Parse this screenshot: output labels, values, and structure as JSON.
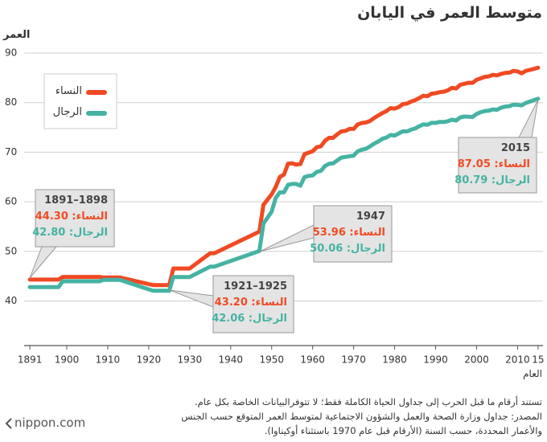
{
  "chart_data": {
    "type": "line",
    "title": "متوسط العمر في اليابان",
    "y_label": "العمر",
    "x_label": "العام",
    "x": [
      1891,
      1898,
      1899,
      1908,
      1909,
      1913,
      1921,
      1925,
      1926,
      1930,
      1935,
      1936,
      1947,
      1948,
      1950,
      1951,
      1952,
      1953,
      1954,
      1955,
      1956,
      1957,
      1958,
      1959,
      1960,
      1961,
      1962,
      1963,
      1964,
      1965,
      1966,
      1967,
      1968,
      1969,
      1970,
      1971,
      1972,
      1973,
      1974,
      1975,
      1976,
      1977,
      1978,
      1979,
      1980,
      1981,
      1982,
      1983,
      1984,
      1985,
      1986,
      1987,
      1988,
      1989,
      1990,
      1991,
      1992,
      1993,
      1994,
      1995,
      1996,
      1997,
      1998,
      1999,
      2000,
      2001,
      2002,
      2003,
      2004,
      2005,
      2006,
      2007,
      2008,
      2009,
      2010,
      2011,
      2012,
      2013,
      2014,
      2015
    ],
    "series": [
      {
        "name": "النساء",
        "color": "#f04a23",
        "values": [
          44.3,
          44.3,
          44.85,
          44.85,
          44.73,
          44.73,
          43.2,
          43.2,
          46.54,
          46.54,
          49.63,
          49.63,
          53.96,
          59.4,
          61.5,
          63.0,
          65.0,
          65.5,
          67.7,
          67.75,
          67.5,
          67.6,
          69.6,
          69.9,
          70.2,
          71.0,
          71.2,
          72.3,
          72.9,
          72.9,
          73.6,
          74.2,
          74.3,
          74.7,
          74.7,
          75.6,
          75.9,
          76.0,
          76.3,
          76.9,
          77.4,
          77.9,
          78.3,
          78.9,
          78.8,
          79.1,
          79.7,
          79.8,
          80.2,
          80.5,
          80.9,
          81.4,
          81.3,
          81.8,
          81.9,
          82.1,
          82.2,
          82.5,
          82.98,
          82.85,
          83.6,
          83.8,
          84.0,
          83.99,
          84.6,
          84.9,
          85.2,
          85.3,
          85.6,
          85.5,
          85.8,
          86.0,
          86.05,
          86.4,
          86.3,
          85.9,
          86.4,
          86.6,
          86.8,
          87.05
        ]
      },
      {
        "name": "الرجال",
        "color": "#45b3a3",
        "values": [
          42.8,
          42.8,
          43.97,
          43.97,
          44.25,
          44.25,
          42.06,
          42.06,
          44.82,
          44.82,
          46.92,
          46.92,
          50.06,
          55.6,
          58.0,
          60.8,
          61.9,
          61.9,
          63.41,
          63.6,
          63.59,
          63.24,
          64.98,
          65.21,
          65.32,
          66.03,
          66.23,
          67.21,
          67.67,
          67.74,
          68.35,
          68.91,
          69.05,
          69.18,
          69.31,
          70.17,
          70.5,
          70.7,
          71.16,
          71.73,
          72.15,
          72.69,
          72.97,
          73.46,
          73.35,
          73.79,
          74.22,
          74.2,
          74.54,
          74.78,
          75.23,
          75.61,
          75.54,
          75.91,
          75.92,
          76.11,
          76.09,
          76.25,
          76.57,
          76.38,
          77.01,
          77.19,
          77.16,
          77.1,
          77.72,
          78.07,
          78.32,
          78.36,
          78.64,
          78.56,
          79.0,
          79.19,
          79.29,
          79.59,
          79.55,
          79.44,
          79.94,
          80.21,
          80.5,
          80.79
        ]
      }
    ],
    "xlim": [
      1889.6,
      2016.2
    ],
    "ylim": [
      31,
      90
    ],
    "xticks": [
      1891,
      1900,
      1910,
      1920,
      1930,
      1940,
      1950,
      1960,
      1970,
      1980,
      1990,
      2000,
      2010,
      {
        "value": 2015,
        "label": "15"
      }
    ],
    "yticks": [
      40,
      50,
      60,
      70,
      80,
      90
    ],
    "grid": true,
    "legend": "top-left",
    "annotations": [
      {
        "period": "1891–1898",
        "women_label": "النساء: 44.30",
        "men_label": "الرجال: 42.80"
      },
      {
        "period": "1947",
        "women_label": "النساء: 53.96",
        "men_label": "الرجال: 50.06"
      },
      {
        "period": "1921–1925",
        "women_label": "النساء: 43.20",
        "men_label": "الرجال: 42.06"
      },
      {
        "period": "2015",
        "women_label": "النساء: 87.05",
        "men_label": "الرجال: 80.79"
      }
    ],
    "notes": [
      "تستند أرقام ما قبل الحرب إلى جداول الحياة الكاملة فقط؛ لا تتوفرالبيانات الخاصة بكل عام.",
      "المصدر: جداول وزارة الصحة والعمل والشؤون الاجتماعية لمتوسط العمر المتوقع حسب الجنس",
      "والأعمار المحددة، حسب السنة (الأرقام قبل عام 1970 باستثناء أوكيناوا)."
    ],
    "logo": "nippon.com"
  }
}
